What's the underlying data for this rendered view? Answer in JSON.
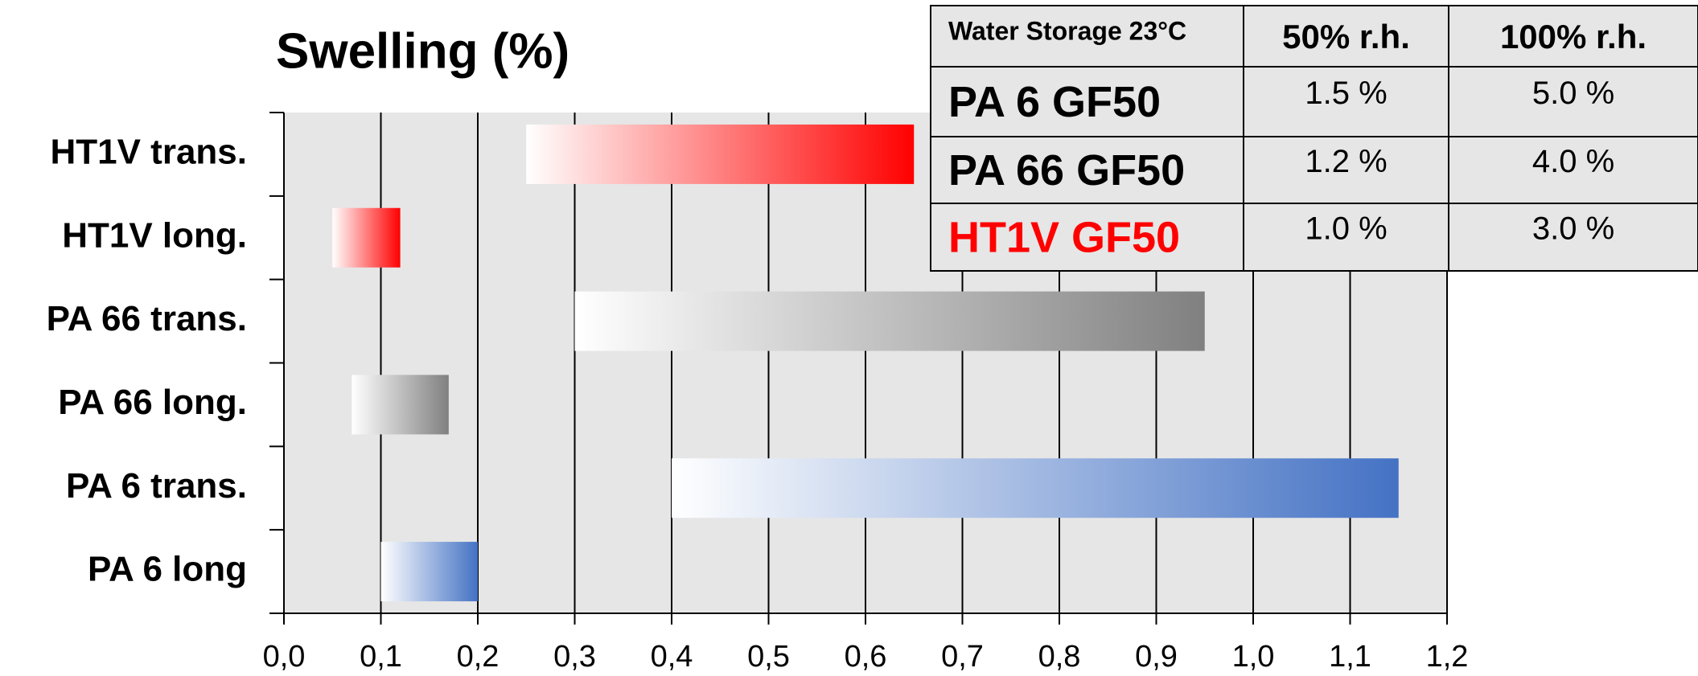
{
  "chart_data": {
    "type": "range-bar",
    "title": "Swelling (%)",
    "categories": [
      "HT1V trans.",
      "HT1V long.",
      "PA 66 trans.",
      "PA 66 long.",
      "PA 6 trans.",
      "PA 6 long"
    ],
    "low": [
      0.25,
      0.05,
      0.3,
      0.07,
      0.4,
      0.1
    ],
    "high": [
      0.65,
      0.12,
      0.95,
      0.17,
      1.15,
      0.2
    ],
    "colors": [
      "#ff0000",
      "#ff0000",
      "#808080",
      "#808080",
      "#4472c4",
      "#4472c4"
    ],
    "xlim": [
      0,
      1.2
    ],
    "xticks": [
      {
        "value": 0,
        "label": "0,0"
      },
      {
        "value": 0.1,
        "label": "0,1"
      },
      {
        "value": 0.2,
        "label": "0,2"
      },
      {
        "value": 0.3,
        "label": "0,3"
      },
      {
        "value": 0.4,
        "label": "0,4"
      },
      {
        "value": 0.5,
        "label": "0,5"
      },
      {
        "value": 0.6,
        "label": "0,6"
      },
      {
        "value": 0.7,
        "label": "0,7"
      },
      {
        "value": 0.8,
        "label": "0,8"
      },
      {
        "value": 0.9,
        "label": "0,9"
      },
      {
        "value": 1.0,
        "label": "1,0"
      },
      {
        "value": 1.1,
        "label": "1,1"
      },
      {
        "value": 1.2,
        "label": "1,2"
      }
    ],
    "grid": true
  },
  "table": {
    "header": [
      "Water Storage 23°C",
      "50% r.h.",
      "100% r.h."
    ],
    "rows": [
      [
        "PA 6 GF50",
        "1.5 %",
        "5.0 %"
      ],
      [
        "PA 66 GF50",
        "1.2 %",
        "4.0 %"
      ],
      [
        "HT1V GF50",
        "1.0 %",
        "3.0 %"
      ]
    ]
  }
}
